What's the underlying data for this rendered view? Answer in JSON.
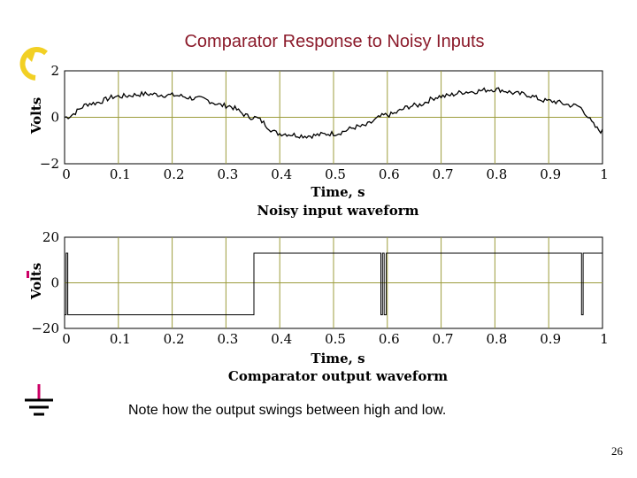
{
  "slide": {
    "title": "Comparator Response to Noisy Inputs",
    "note": "Note how the output swings between high and low.",
    "page_number": "26"
  },
  "decor_icons": [
    "circular-arrow-icon",
    "ground-symbol-icon"
  ],
  "colors": {
    "title": "#8b1a2a",
    "grid": "#9c9c3c",
    "trace": "#000000",
    "ground": "#cc0066",
    "arrow": "#f2d024"
  },
  "chart_data": [
    {
      "type": "line",
      "title": "Noisy input waveform",
      "xlabel": "Time, s",
      "ylabel": "Volts",
      "xlim": [
        0,
        1
      ],
      "ylim": [
        -2,
        2
      ],
      "xticks": [
        "0",
        "0.1",
        "0.2",
        "0.3",
        "0.4",
        "0.5",
        "0.6",
        "0.7",
        "0.8",
        "0.9",
        "1"
      ],
      "yticks": [
        "2",
        "0",
        "−2"
      ],
      "grid": true,
      "x": [
        0,
        0.05,
        0.1,
        0.15,
        0.2,
        0.25,
        0.3,
        0.35,
        0.4,
        0.45,
        0.5,
        0.55,
        0.6,
        0.65,
        0.7,
        0.75,
        0.8,
        0.85,
        0.9,
        0.95,
        1.0
      ],
      "y": [
        0.0,
        0.6,
        0.9,
        1.0,
        0.95,
        0.8,
        0.5,
        0.0,
        -0.7,
        -0.8,
        -0.7,
        -0.4,
        0.1,
        0.5,
        0.9,
        1.1,
        1.2,
        1.0,
        0.7,
        0.5,
        -0.6
      ]
    },
    {
      "type": "line",
      "title": "Comparator output waveform",
      "xlabel": "Time, s",
      "ylabel": "Volts",
      "xlim": [
        0,
        1
      ],
      "ylim": [
        -20,
        20
      ],
      "xticks": [
        "0",
        "0.1",
        "0.2",
        "0.3",
        "0.4",
        "0.5",
        "0.6",
        "0.7",
        "0.8",
        "0.9",
        "1"
      ],
      "yticks": [
        "20",
        "0",
        "−20"
      ],
      "grid": true,
      "x": [
        0,
        0.003,
        0.003,
        0.006,
        0.006,
        0.352,
        0.352,
        0.588,
        0.588,
        0.591,
        0.591,
        0.594,
        0.594,
        0.598,
        0.598,
        0.961,
        0.961,
        0.964,
        0.964,
        1.0
      ],
      "y": [
        -14,
        -14,
        13,
        13,
        -14,
        -14,
        13,
        13,
        -14,
        -14,
        13,
        13,
        -14,
        -14,
        13,
        13,
        -14,
        -14,
        13,
        13
      ]
    }
  ]
}
